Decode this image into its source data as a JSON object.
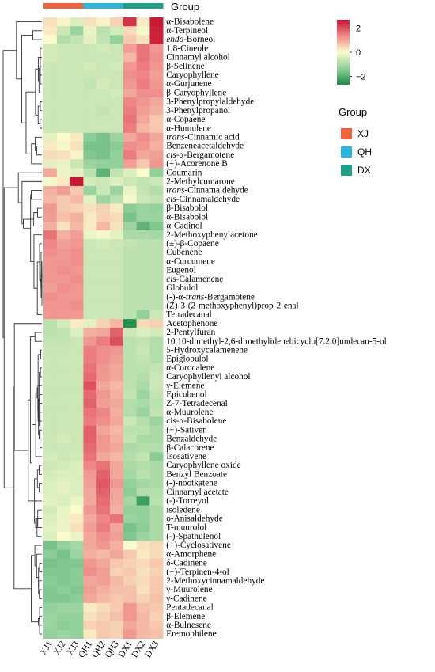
{
  "chart_data": {
    "type": "heatmap",
    "group_bar_label": "Group",
    "groups": [
      {
        "name": "XJ",
        "color": "#f4623a"
      },
      {
        "name": "QH",
        "color": "#2bb6dd"
      },
      {
        "name": "DX",
        "color": "#1f9f86"
      }
    ],
    "columns": [
      "XJ1",
      "XJ2",
      "XJ3",
      "QH1",
      "QH2",
      "QH3",
      "DX1",
      "DX2",
      "DX3"
    ],
    "column_groups": [
      "XJ",
      "XJ",
      "XJ",
      "QH",
      "QH",
      "QH",
      "DX",
      "DX",
      "DX"
    ],
    "color_scale": {
      "low": "#1a8a4a",
      "mid": "#fbfbcc",
      "high": "#c8102e",
      "min": -2.7,
      "max": 2.7,
      "ticks": [
        2,
        0,
        -2
      ],
      "tick_labels": [
        "2",
        "0",
        "−2"
      ]
    },
    "rows": [
      {
        "label": "α-Bisabolene",
        "values": [
          0.3,
          0.1,
          -0.4,
          0.3,
          0.1,
          0.5,
          2.3,
          0.2,
          2.6
        ]
      },
      {
        "label": "α-Terpineol",
        "values": [
          0.2,
          -0.6,
          -1.2,
          -0.2,
          -0.8,
          -0.5,
          0.4,
          -0.1,
          2.5
        ]
      },
      {
        "label": "endo-Borneol",
        "italic_prefix": "endo",
        "rest": "-Borneol",
        "values": [
          0.0,
          -0.9,
          -0.7,
          -0.3,
          -0.7,
          -1.3,
          0.6,
          0.3,
          2.5
        ]
      },
      {
        "label": "1,8-Cineole",
        "values": [
          -0.5,
          -0.6,
          -0.6,
          -0.6,
          -0.5,
          -0.6,
          1.1,
          1.6,
          1.2
        ]
      },
      {
        "label": "Cinnamyl alcohol",
        "values": [
          -0.5,
          -0.6,
          -0.6,
          -0.6,
          -0.6,
          -0.6,
          0.8,
          1.6,
          1.3
        ]
      },
      {
        "label": "β-Selinene",
        "values": [
          -0.6,
          -0.6,
          -0.6,
          -0.5,
          -0.6,
          -0.5,
          1.2,
          1.5,
          1.2
        ]
      },
      {
        "label": "Caryophyllene",
        "values": [
          -0.6,
          -0.6,
          -0.6,
          -0.6,
          -0.6,
          -0.6,
          1.3,
          1.4,
          1.1
        ]
      },
      {
        "label": "α-Gurjunene",
        "values": [
          -0.6,
          -0.6,
          -0.6,
          -0.7,
          -0.5,
          -0.6,
          1.2,
          1.5,
          1.2
        ]
      },
      {
        "label": "β-Caryophyllene",
        "values": [
          -0.6,
          -0.6,
          -0.6,
          -0.6,
          -0.6,
          -0.5,
          1.0,
          1.3,
          1.3
        ]
      },
      {
        "label": "3-Phenylpropylaldehyde",
        "values": [
          -0.6,
          -0.6,
          -0.6,
          -0.6,
          -0.6,
          -0.6,
          1.4,
          1.2,
          1.0
        ]
      },
      {
        "label": "3-Phenylpropanol",
        "values": [
          -0.6,
          -0.6,
          -0.6,
          -0.6,
          -0.7,
          -0.6,
          1.5,
          1.1,
          0.9
        ]
      },
      {
        "label": "α-Copaene",
        "values": [
          -0.6,
          -0.6,
          -0.6,
          -0.6,
          -0.6,
          -0.6,
          1.6,
          1.0,
          0.6
        ]
      },
      {
        "label": "α-Humulene",
        "values": [
          -0.6,
          -0.6,
          -0.6,
          -0.6,
          -0.6,
          -0.6,
          1.5,
          0.8,
          0.6
        ]
      },
      {
        "label": "trans-Cinnamic acid",
        "italic_prefix": "trans",
        "rest": "-Cinnamic acid",
        "values": [
          -0.3,
          0.0,
          0.2,
          -1.4,
          -1.6,
          -1.2,
          1.0,
          1.3,
          1.0
        ]
      },
      {
        "label": "Benzeneacetaldehyde",
        "values": [
          0.2,
          -0.1,
          0.3,
          -1.6,
          -1.6,
          -1.4,
          1.3,
          1.2,
          0.9
        ]
      },
      {
        "label": "cis-α-Bergamotene",
        "italic_prefix": "cis",
        "rest": "-α-Bergamotene",
        "values": [
          0.4,
          0.3,
          0.1,
          -1.5,
          -1.6,
          -1.3,
          1.5,
          1.0,
          1.1
        ]
      },
      {
        "label": "(+)-Acorenone B",
        "values": [
          -0.3,
          -0.2,
          -0.6,
          -1.2,
          -1.3,
          -1.3,
          1.1,
          0.6,
          1.2
        ]
      },
      {
        "label": "Coumarin",
        "values": [
          1.0,
          -0.2,
          -0.3,
          -0.8,
          -1.9,
          -0.7,
          -0.4,
          0.0,
          -1.3
        ]
      },
      {
        "label": "2-Methylcumarone",
        "values": [
          -0.1,
          0.2,
          2.6,
          -0.5,
          -0.6,
          -0.4,
          -0.6,
          -0.7,
          -0.6
        ]
      },
      {
        "label": "trans-Cinnamaldehyde",
        "italic_prefix": "trans",
        "rest": "-Cinnamaldehyde",
        "values": [
          0.9,
          1.1,
          0.6,
          -1.2,
          -0.6,
          -1.2,
          -0.2,
          -0.7,
          -0.9
        ]
      },
      {
        "label": "cis-Cinnamaldehyde",
        "italic_prefix": "cis",
        "rest": "-Cinnamaldehyde",
        "values": [
          0.8,
          0.6,
          0.8,
          -0.3,
          -1.2,
          -0.8,
          -0.1,
          -0.6,
          -0.7
        ]
      },
      {
        "label": "β-Bisabolol",
        "values": [
          1.2,
          0.6,
          0.5,
          0.3,
          0.5,
          0.2,
          -1.4,
          -1.2,
          -1.3
        ]
      },
      {
        "label": "α-Bisabolol",
        "values": [
          1.1,
          0.7,
          0.9,
          0.2,
          0.5,
          0.4,
          -1.6,
          -1.2,
          -1.2
        ]
      },
      {
        "label": "α-Cadinol",
        "values": [
          0.9,
          0.3,
          0.8,
          0.2,
          0.8,
          0.3,
          -1.2,
          -1.9,
          -1.5
        ]
      },
      {
        "label": "2-Methoxyphenylacetone",
        "values": [
          1.6,
          0.9,
          1.1,
          -0.2,
          -0.1,
          -0.3,
          -1.0,
          -1.0,
          -1.1
        ]
      },
      {
        "label": "(±)-β-Copaene",
        "values": [
          1.4,
          1.1,
          1.2,
          -0.6,
          -0.5,
          -0.6,
          -0.7,
          -0.8,
          -0.8
        ]
      },
      {
        "label": "Cubenene",
        "values": [
          1.3,
          1.2,
          1.3,
          -0.6,
          -0.6,
          -0.6,
          -0.8,
          -0.8,
          -0.8
        ]
      },
      {
        "label": "α-Curcumene",
        "values": [
          1.2,
          1.2,
          1.3,
          -0.6,
          -0.6,
          -0.6,
          -0.8,
          -0.8,
          -0.8
        ]
      },
      {
        "label": "Eugenol",
        "values": [
          1.2,
          1.3,
          1.2,
          -0.6,
          -0.6,
          -0.6,
          -0.8,
          -0.8,
          -0.8
        ]
      },
      {
        "label": "cis-Calamenene",
        "italic_prefix": "cis",
        "rest": "-Calamenene",
        "values": [
          1.2,
          1.2,
          1.3,
          -0.6,
          -0.6,
          -0.6,
          -0.8,
          -0.8,
          -0.8
        ]
      },
      {
        "label": "Globulol",
        "values": [
          1.1,
          1.3,
          1.2,
          -0.6,
          -0.6,
          -0.6,
          -0.8,
          -0.8,
          -0.8
        ]
      },
      {
        "label": "(-)-α-trans-Bergamotene",
        "italic_mid": "trans",
        "pre": "(-)-α-",
        "rest": "-Bergamotene",
        "values": [
          1.3,
          1.2,
          1.2,
          -0.6,
          -0.6,
          -0.6,
          -0.8,
          -0.8,
          -0.8
        ]
      },
      {
        "label": "(Z)-3-(2-methoxyphenyl)prop-2-enal",
        "values": [
          1.2,
          1.2,
          1.3,
          -0.6,
          -0.6,
          -0.6,
          -0.8,
          -0.8,
          -0.8
        ]
      },
      {
        "label": "Tetradecanal",
        "values": [
          1.2,
          1.2,
          1.2,
          -0.6,
          -0.6,
          -0.6,
          -0.8,
          -1.3,
          -0.6
        ]
      },
      {
        "label": "Acetophenone",
        "values": [
          -0.8,
          -0.5,
          0.2,
          -0.3,
          0.5,
          0.8,
          -2.6,
          0.4,
          0.5
        ]
      },
      {
        "label": "2-Pentylfuran",
        "values": [
          -0.8,
          -0.7,
          -0.4,
          0.9,
          1.0,
          1.8,
          -0.6,
          -0.4,
          -0.5
        ]
      },
      {
        "label": "10,10-dimethyl-2,6-dimethylidenebicyclo[7.2.0]undecan-5-ol",
        "values": [
          -0.7,
          -0.7,
          -0.6,
          1.2,
          1.5,
          2.0,
          -0.8,
          -0.7,
          -0.9
        ]
      },
      {
        "label": "5-Hydroxycalamenene",
        "values": [
          -0.6,
          -0.6,
          -0.6,
          1.5,
          1.3,
          1.2,
          -0.8,
          -0.6,
          -0.9
        ]
      },
      {
        "label": "Epiglobulol",
        "values": [
          -0.6,
          -0.6,
          -0.6,
          1.5,
          1.3,
          1.1,
          -0.8,
          -0.7,
          -0.9
        ]
      },
      {
        "label": "α-Corocalene",
        "values": [
          -0.6,
          -0.6,
          -0.6,
          1.6,
          1.2,
          1.0,
          -0.8,
          -0.8,
          -0.7
        ]
      },
      {
        "label": "Caryophyllenyl alcohol",
        "values": [
          -0.6,
          -0.6,
          -0.6,
          1.7,
          1.2,
          1.0,
          -0.8,
          -0.9,
          -0.6
        ]
      },
      {
        "label": "γ-Elemene",
        "values": [
          -0.6,
          -0.6,
          -0.6,
          2.0,
          1.0,
          0.8,
          -0.8,
          -1.0,
          -0.6
        ]
      },
      {
        "label": "Epicubenol",
        "values": [
          -0.6,
          -0.6,
          -0.6,
          1.7,
          1.2,
          0.9,
          -0.7,
          -1.2,
          -0.7
        ]
      },
      {
        "label": "Z-7-Tetradecenal",
        "values": [
          -0.6,
          -0.6,
          -0.6,
          1.8,
          1.1,
          1.0,
          -0.9,
          -1.0,
          -0.8
        ]
      },
      {
        "label": "α-Muurolene",
        "values": [
          -0.6,
          -0.6,
          -0.6,
          1.6,
          1.4,
          0.9,
          -0.9,
          -1.2,
          -0.7
        ]
      },
      {
        "label": "cis-α-Bisabolene",
        "values": [
          -0.6,
          -0.6,
          -0.6,
          1.5,
          1.3,
          1.0,
          -0.6,
          -0.9,
          -1.2
        ]
      },
      {
        "label": "(+)-Sativen",
        "values": [
          -0.6,
          -0.6,
          -0.6,
          1.8,
          1.0,
          0.8,
          -0.8,
          -0.8,
          -1.0
        ]
      },
      {
        "label": "Benzaldehyde",
        "values": [
          -0.6,
          -0.5,
          -0.6,
          1.8,
          1.2,
          0.9,
          -0.7,
          -1.0,
          -1.0
        ]
      },
      {
        "label": "β-Calacorene",
        "values": [
          -0.6,
          -0.6,
          -0.6,
          1.7,
          1.2,
          1.0,
          -1.0,
          -0.9,
          -0.9
        ]
      },
      {
        "label": "Isosativene",
        "values": [
          -0.5,
          -0.6,
          -0.5,
          1.6,
          1.0,
          0.8,
          -0.9,
          -0.7,
          -1.4
        ]
      },
      {
        "label": "Caryophyllene oxide",
        "values": [
          -0.6,
          -0.5,
          -0.4,
          1.4,
          1.6,
          1.0,
          -1.0,
          -0.9,
          -1.0
        ]
      },
      {
        "label": "Benzyl Benzoate",
        "values": [
          -0.5,
          -0.4,
          -0.4,
          1.2,
          1.8,
          1.0,
          -1.1,
          -0.8,
          -1.0
        ]
      },
      {
        "label": "(-)-nootkatene",
        "values": [
          -0.4,
          -0.3,
          -0.4,
          1.1,
          1.9,
          1.2,
          -1.3,
          -1.1,
          -1.0
        ]
      },
      {
        "label": "Cinnamyl acetate",
        "values": [
          -0.4,
          -0.3,
          -0.4,
          1.0,
          1.8,
          1.0,
          -1.4,
          -0.9,
          -0.9
        ]
      },
      {
        "label": "(-)-Torreyol",
        "values": [
          -0.3,
          -0.4,
          -0.2,
          1.0,
          1.7,
          1.0,
          -1.1,
          -2.3,
          -0.8
        ]
      },
      {
        "label": "isoledene",
        "values": [
          -0.5,
          -0.2,
          0.0,
          1.2,
          1.6,
          0.9,
          -1.3,
          -1.3,
          -1.0
        ]
      },
      {
        "label": "o-Anisaldehyde",
        "values": [
          -0.4,
          -0.2,
          0.2,
          1.0,
          1.4,
          1.6,
          -1.2,
          -1.3,
          -1.0
        ]
      },
      {
        "label": "T-muurolol",
        "values": [
          -0.3,
          -0.2,
          0.3,
          1.1,
          1.5,
          1.0,
          -1.6,
          -1.4,
          -1.0
        ]
      },
      {
        "label": "(-)-Spathulenol",
        "values": [
          -0.4,
          0.0,
          -0.2,
          1.0,
          1.3,
          1.1,
          -1.5,
          -1.2,
          -1.0
        ]
      },
      {
        "label": "(+)-Cyclosativene",
        "values": [
          -1.6,
          -1.3,
          -1.1,
          1.0,
          1.2,
          0.9,
          0.0,
          0.3,
          0.4
        ]
      },
      {
        "label": "α-Amorphene",
        "values": [
          -1.4,
          -1.6,
          -1.2,
          0.9,
          0.8,
          1.0,
          0.6,
          0.2,
          0.4
        ]
      },
      {
        "label": "δ-Cadinene",
        "values": [
          -1.6,
          -1.5,
          -1.5,
          1.2,
          1.0,
          0.6,
          0.5,
          0.4,
          0.6
        ]
      },
      {
        "label": "(−)-Terpinen-4-ol",
        "values": [
          -1.5,
          -1.5,
          -1.4,
          1.3,
          1.1,
          0.5,
          0.6,
          0.3,
          0.5
        ]
      },
      {
        "label": "2-Methoxycinnamaldehyde",
        "values": [
          -1.4,
          -1.5,
          -1.4,
          1.0,
          1.1,
          0.8,
          0.5,
          0.4,
          0.6
        ]
      },
      {
        "label": "γ-Muurolene",
        "values": [
          -1.5,
          -1.4,
          -1.5,
          1.1,
          0.9,
          0.7,
          0.7,
          0.3,
          0.6
        ]
      },
      {
        "label": "γ-Cadinene",
        "values": [
          -1.5,
          -1.5,
          -1.4,
          1.0,
          0.8,
          0.6,
          0.7,
          0.5,
          0.7
        ]
      },
      {
        "label": "Pentadecanal",
        "values": [
          -1.3,
          -1.2,
          -1.2,
          0.2,
          0.4,
          0.6,
          1.2,
          0.7,
          0.6
        ]
      },
      {
        "label": "β-Elemene",
        "values": [
          -1.2,
          -1.3,
          -1.3,
          0.3,
          0.5,
          0.7,
          1.2,
          0.8,
          0.5
        ]
      },
      {
        "label": "α-Bulnesene",
        "values": [
          -1.2,
          -1.4,
          -1.3,
          0.5,
          0.6,
          0.5,
          1.0,
          0.8,
          0.6
        ]
      },
      {
        "label": "Eremophilene",
        "values": [
          -1.3,
          -1.2,
          -1.3,
          0.2,
          0.6,
          0.5,
          1.2,
          0.8,
          0.7
        ]
      }
    ],
    "legend": {
      "title": "Group",
      "placement": "right"
    }
  }
}
